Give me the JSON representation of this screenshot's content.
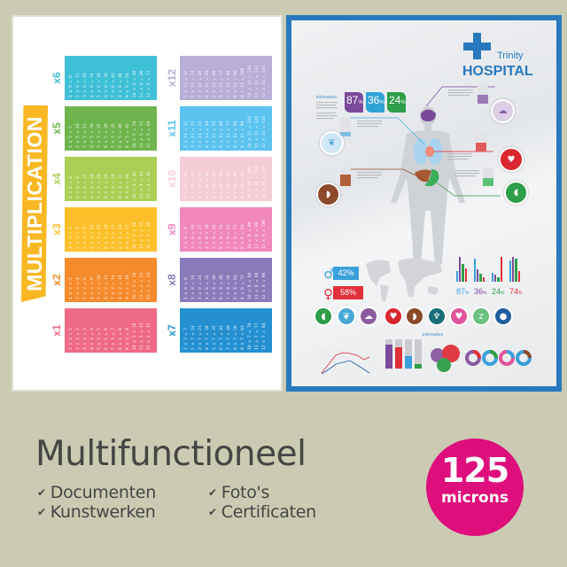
{
  "multiplication_poster": {
    "title": "MULTIPLICATION",
    "tables": [
      {
        "label": "x1",
        "color": "#ef6b85",
        "rows": [
          "1 x 1 = 1",
          "2 x 1 = 2",
          "3 x 1 = 3",
          "4 x 1 = 4",
          "5 x 1 = 5",
          "6 x 1 = 6",
          "7 x 1 = 7",
          "8 x 1 = 8",
          "9 x 1 = 9",
          "10 x 1 = 10",
          "11 x 1 = 11",
          "12 x 1 = 12"
        ]
      },
      {
        "label": "x2",
        "color": "#f58b2d",
        "rows": [
          "1 x 2 = 2",
          "2 x 2 = 4",
          "3 x 2 = 6",
          "4 x 2 = 8",
          "5 x 2 = 10",
          "6 x 2 = 12",
          "7 x 2 = 14",
          "8 x 2 = 16",
          "9 x 2 = 18",
          "10 x 2 = 20",
          "11 x 2 = 22",
          "12 x 2 = 24"
        ]
      },
      {
        "label": "x3",
        "color": "#fdc02b",
        "rows": [
          "1 x 3 = 3",
          "2 x 3 = 6",
          "3 x 3 = 9",
          "4 x 3 = 12",
          "5 x 3 = 15",
          "6 x 3 = 18",
          "7 x 3 = 21",
          "8 x 3 = 24",
          "9 x 3 = 27",
          "10 x 3 = 30",
          "11 x 3 = 33",
          "12 x 3 = 36"
        ]
      },
      {
        "label": "x4",
        "color": "#a9d055",
        "rows": [
          "1 x 4 = 4",
          "2 x 4 = 8",
          "3 x 4 = 12",
          "4 x 4 = 16",
          "5 x 4 = 20",
          "6 x 4 = 24",
          "7 x 4 = 28",
          "8 x 4 = 32",
          "9 x 4 = 36",
          "10 x 4 = 40",
          "11 x 4 = 44",
          "12 x 4 = 48"
        ]
      },
      {
        "label": "x5",
        "color": "#6fb54e",
        "rows": [
          "1 x 5 = 5",
          "2 x 5 = 10",
          "3 x 5 = 15",
          "4 x 5 = 20",
          "5 x 5 = 25",
          "6 x 5 = 30",
          "7 x 5 = 35",
          "8 x 5 = 40",
          "9 x 5 = 45",
          "10 x 5 = 50",
          "11 x 5 = 55",
          "12 x 5 = 60"
        ]
      },
      {
        "label": "x6",
        "color": "#3fc0d6",
        "rows": [
          "1 x 6 = 6",
          "2 x 6 = 12",
          "3 x 6 = 18",
          "4 x 6 = 24",
          "5 x 6 = 30",
          "6 x 6 = 36",
          "7 x 6 = 42",
          "8 x 6 = 48",
          "9 x 6 = 54",
          "10 x 6 = 60",
          "11 x 6 = 66",
          "12 x 6 = 72"
        ]
      },
      {
        "label": "x7",
        "color": "#2490d2",
        "rows": [
          "1 x 7 = 7",
          "2 x 7 = 14",
          "3 x 7 = 21",
          "4 x 7 = 28",
          "5 x 7 = 35",
          "6 x 7 = 42",
          "7 x 7 = 49",
          "8 x 7 = 56",
          "9 x 7 = 63",
          "10 x 7 = 70",
          "11 x 7 = 77",
          "12 x 7 = 84"
        ]
      },
      {
        "label": "x8",
        "color": "#8a7bbb",
        "rows": [
          "1 x 8 = 8",
          "2 x 8 = 16",
          "3 x 8 = 24",
          "4 x 8 = 32",
          "5 x 8 = 40",
          "6 x 8 = 48",
          "7 x 8 = 56",
          "8 x 8 = 64",
          "9 x 8 = 72",
          "10 x 8 = 80",
          "11 x 8 = 88",
          "12 x 8 = 96"
        ]
      },
      {
        "label": "x9",
        "color": "#f187bd",
        "rows": [
          "1 x 9 = 9",
          "2 x 9 = 18",
          "3 x 9 = 27",
          "4 x 9 = 36",
          "5 x 9 = 45",
          "6 x 9 = 54",
          "7 x 9 = 63",
          "8 x 9 = 72",
          "9 x 9 = 81",
          "10 x 9 = 90",
          "11 x 9 = 99",
          "12 x 9 = 108"
        ]
      },
      {
        "label": "x10",
        "color": "#f5cdd6",
        "rows": [
          "1 x 10 = 10",
          "2 x 10 = 20",
          "3 x 10 = 30",
          "4 x 10 = 40",
          "5 x 10 = 50",
          "6 x 10 = 60",
          "7 x 10 = 70",
          "8 x 10 = 80",
          "9 x 10 = 90",
          "10 x 10 = 100",
          "11 x 10 = 110",
          "12 x 10 = 120"
        ]
      },
      {
        "label": "x11",
        "color": "#5bc3ee",
        "rows": [
          "1 x 11 = 11",
          "2 x 11 = 22",
          "3 x 11 = 33",
          "4 x 11 = 44",
          "5 x 11 = 55",
          "6 x 11 = 66",
          "7 x 11 = 77",
          "8 x 11 = 88",
          "9 x 11 = 99",
          "10 x 11 = 110",
          "11 x 11 = 121",
          "12 x 11 = 132"
        ]
      },
      {
        "label": "x12",
        "color": "#b9aed6",
        "rows": [
          "1 x 12 = 12",
          "2 x 12 = 24",
          "3 x 12 = 36",
          "4 x 12 = 48",
          "5 x 12 = 60",
          "6 x 12 = 72",
          "7 x 12 = 84",
          "8 x 12 = 96",
          "9 x 12 = 108",
          "10 x 12 = 120",
          "11 x 12 = 132",
          "12 x 12 = 144"
        ]
      }
    ]
  },
  "hospital_poster": {
    "brand_small": "Trinity",
    "brand_large": "HOSPITAL",
    "info_heading": "Information",
    "info_heading_2": "Information",
    "stat_boxes": [
      {
        "value": "87",
        "unit": "%",
        "color": "#7b4a9a"
      },
      {
        "value": "36",
        "unit": "%",
        "color": "#2ea3d6"
      },
      {
        "value": "24",
        "unit": "%",
        "color": "#2e9e48"
      }
    ],
    "gender": [
      {
        "icon": "male-icon",
        "value": "42%",
        "color": "#3aa0dc"
      },
      {
        "icon": "female-icon",
        "value": "58%",
        "color": "#e0303a"
      }
    ],
    "bar_groups": [
      {
        "value": "87",
        "unit": "%",
        "color": "#3aa0dc"
      },
      {
        "value": "36",
        "unit": "%",
        "color": "#7b4a9a"
      },
      {
        "value": "24",
        "unit": "%",
        "color": "#2e9e48"
      },
      {
        "value": "74",
        "unit": "%",
        "color": "#e0303a"
      }
    ],
    "organ_icons": [
      {
        "icon": "stomach-icon",
        "color": "#2e9e48",
        "glyph": "◖"
      },
      {
        "icon": "lungs-icon",
        "color": "#4aa8d8",
        "glyph": "❦"
      },
      {
        "icon": "brain-icon",
        "color": "#8a5aa0",
        "glyph": "☁"
      },
      {
        "icon": "heart-organ-icon",
        "color": "#d9262e",
        "glyph": "♥"
      },
      {
        "icon": "liver-icon",
        "color": "#8c4a2a",
        "glyph": "◗"
      },
      {
        "icon": "tooth-icon",
        "color": "#1a6e7a",
        "glyph": "♆"
      },
      {
        "icon": "heart-icon",
        "color": "#e0559a",
        "glyph": "♥"
      },
      {
        "icon": "sleep-icon",
        "color": "#6cc080",
        "glyph": "z"
      },
      {
        "icon": "apple-icon",
        "color": "#1f5fa0",
        "glyph": "●"
      }
    ]
  },
  "features": {
    "title": "Multifunctioneel",
    "items": [
      "Documenten",
      "Kunstwerken",
      "Foto's",
      "Certificaten"
    ],
    "check_glyph": "✔"
  },
  "badge": {
    "value": "125",
    "unit": "microns",
    "color": "#de0e7c"
  }
}
